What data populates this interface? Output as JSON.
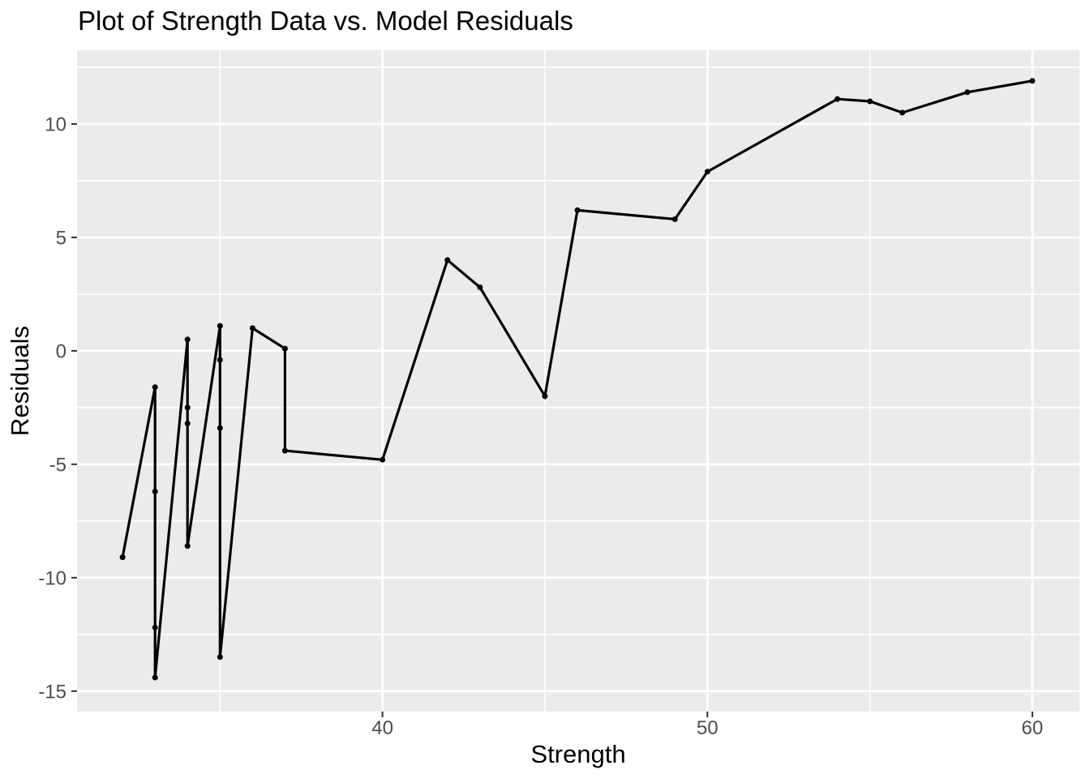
{
  "title": "Plot of Strength Data vs. Model Residuals",
  "chart_data": {
    "type": "line",
    "title": "Plot of Strength Data vs. Model Residuals",
    "xlabel": "Strength",
    "ylabel": "Residuals",
    "points": [
      [
        32,
        -9.1
      ],
      [
        33,
        -1.6
      ],
      [
        33,
        -6.2
      ],
      [
        33,
        -12.2
      ],
      [
        33,
        -14.4
      ],
      [
        34,
        0.5
      ],
      [
        34,
        -2.5
      ],
      [
        34,
        -3.2
      ],
      [
        34,
        -8.6
      ],
      [
        35,
        1.1
      ],
      [
        35,
        -0.4
      ],
      [
        35,
        -3.4
      ],
      [
        35,
        -13.5
      ],
      [
        36,
        1.0
      ],
      [
        37,
        0.1
      ],
      [
        37,
        -4.4
      ],
      [
        40,
        -4.8
      ],
      [
        42,
        4.0
      ],
      [
        43,
        2.8
      ],
      [
        45,
        -2.0
      ],
      [
        46,
        6.2
      ],
      [
        49,
        5.8
      ],
      [
        50,
        7.9
      ],
      [
        54,
        11.1
      ],
      [
        55,
        11.0
      ],
      [
        56,
        10.5
      ],
      [
        58,
        11.4
      ],
      [
        60,
        11.9
      ]
    ],
    "x_major_ticks": [
      40,
      50,
      60
    ],
    "x_minor_gridlines": [
      35,
      45,
      55
    ],
    "y_major_ticks": [
      -15,
      -10,
      -5,
      0,
      5,
      10
    ],
    "y_minor_gridlines": [
      -12.5,
      -7.5,
      -2.5,
      2.5,
      7.5,
      12.5
    ],
    "xlim": [
      30.6,
      61.45
    ],
    "ylim": [
      -15.9,
      13.25
    ],
    "grid": "major+minor",
    "legend": "none",
    "marker": "point",
    "style": {
      "plot_bg": "#FFFFFF",
      "panel_bg": "#EBEBEB",
      "grid_color": "#FFFFFF",
      "line_color": "#000000",
      "point_color": "#000000",
      "tick_label_color": "#4D4D4D",
      "tick_mark_color": "#333333",
      "text_color": "#000000"
    }
  }
}
